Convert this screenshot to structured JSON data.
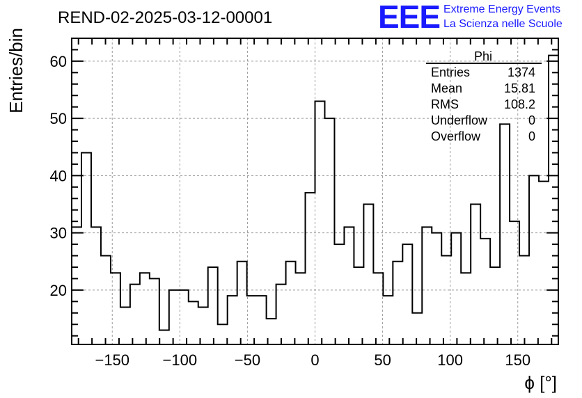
{
  "colors": {
    "line": "#000000",
    "grid": "#999999",
    "logo": "#1a1aff"
  },
  "chart_data": {
    "type": "histogram",
    "title": "REND-02-2025-03-12-00001",
    "xlabel": "ϕ [°]",
    "ylabel": "Entries/bin",
    "xlim": [
      -180,
      180
    ],
    "ylim": [
      10.5,
      64
    ],
    "bin_width": 7.2,
    "x_ticks": [
      -150,
      -100,
      -50,
      0,
      50,
      100,
      150
    ],
    "x_tick_labels": [
      "−150",
      "−100",
      "−50",
      "0",
      "50",
      "100",
      "150"
    ],
    "y_ticks": [
      20,
      30,
      40,
      50,
      60
    ],
    "y_tick_labels": [
      "20",
      "30",
      "40",
      "50",
      "60"
    ],
    "grid": true,
    "values": [
      31,
      44,
      31,
      26,
      23,
      17,
      21,
      23,
      22,
      13,
      20,
      20,
      18,
      17,
      24,
      14,
      19,
      25,
      19,
      19,
      15,
      21,
      25,
      23,
      37,
      53,
      50,
      28,
      31,
      24,
      35,
      23,
      19,
      25,
      28,
      16,
      31,
      30,
      26,
      30,
      23,
      35,
      29,
      24,
      49,
      32,
      26,
      40,
      39,
      61
    ],
    "legend": {
      "title": "Phi",
      "rows": [
        {
          "label": "Entries",
          "value": "1374"
        },
        {
          "label": "Mean",
          "value": "15.81"
        },
        {
          "label": "RMS",
          "value": "108.2"
        },
        {
          "label": "Underflow",
          "value": "0"
        },
        {
          "label": "Overflow",
          "value": "0"
        }
      ],
      "placement": "top-right"
    }
  },
  "logo": {
    "mark": "EEE",
    "line1": "Extreme Energy Events",
    "line2": "La Scienza nelle Scuole"
  }
}
